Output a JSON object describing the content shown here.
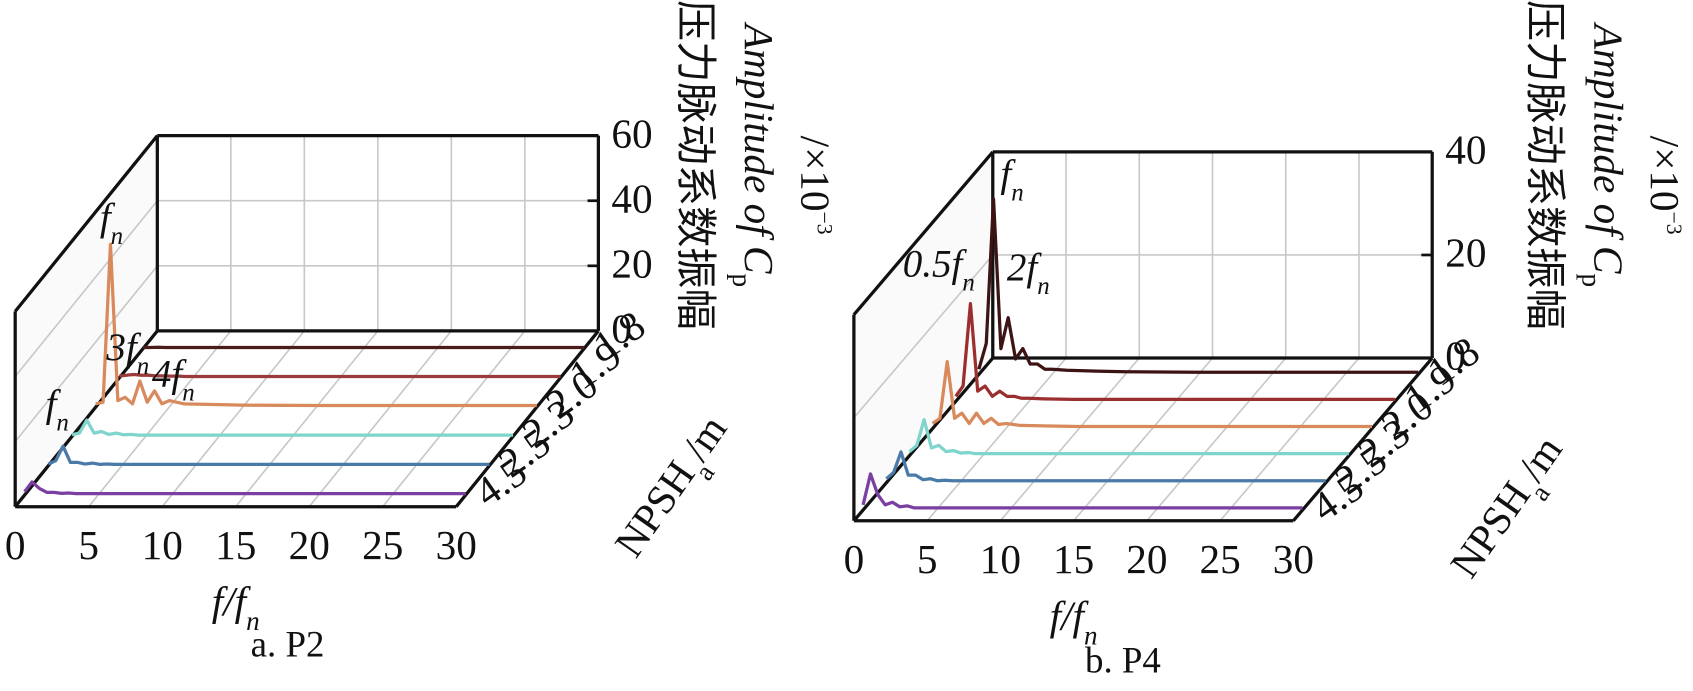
{
  "chart_data": [
    {
      "type": "waterfall",
      "caption": "a. P2",
      "xlabel": {
        "text": "f/f",
        "sub": "n"
      },
      "zlabel": {
        "text": "NPSH",
        "sub": "a",
        "tail": "/m"
      },
      "ylabel": {
        "cn": "压力脉动系数振幅",
        "text": "Amplitude of C",
        "sub": "p",
        "unit": "/×10",
        "sup": "−3"
      },
      "x": [
        0,
        0.5,
        1,
        1.5,
        2,
        2.5,
        3,
        3.5,
        4,
        4.5,
        5,
        6,
        8,
        10,
        15,
        20,
        25,
        30
      ],
      "xlim": [
        0,
        30
      ],
      "xticks": [
        0,
        5,
        10,
        15,
        20,
        25,
        30
      ],
      "ylim": [
        0,
        60
      ],
      "yticks": [
        0,
        20,
        40,
        60
      ],
      "z_categories": [
        "1.8",
        "1.9",
        "2.0",
        "2.3",
        "2.5",
        "4.5"
      ],
      "grid": true,
      "series": [
        {
          "color": "#4a1c1c",
          "values": [
            0.3,
            0.3,
            0.4,
            0.3,
            0.3,
            0.3,
            0.3,
            0.3,
            0.3,
            0.3,
            0.3,
            0.3,
            0.3,
            0.3,
            0.3,
            0.3,
            0.3,
            0.3
          ]
        },
        {
          "color": "#9b3a3a",
          "values": [
            0.5,
            0.8,
            1,
            0.8,
            0.8,
            0.6,
            0.6,
            0.5,
            0.5,
            0.4,
            0.4,
            0.4,
            0.4,
            0.4,
            0.4,
            0.4,
            0.4,
            0.4
          ]
        },
        {
          "color": "#d98a5c",
          "values": [
            1,
            1.5,
            50,
            2,
            3,
            1,
            8,
            1.5,
            5,
            1,
            2,
            1,
            0.8,
            0.6,
            0.5,
            0.5,
            0.5,
            0.5
          ]
        },
        {
          "color": "#7fd4cc",
          "values": [
            0.5,
            1,
            5,
            1,
            1.5,
            0.6,
            1,
            0.5,
            0.6,
            0.4,
            0.4,
            0.4,
            0.4,
            0.4,
            0.4,
            0.4,
            0.4,
            0.4
          ]
        },
        {
          "color": "#4a7aa8",
          "values": [
            0.5,
            1.5,
            6,
            1,
            1,
            0.5,
            0.8,
            0.4,
            0.5,
            0.4,
            0.4,
            0.4,
            0.4,
            0.4,
            0.4,
            0.4,
            0.4,
            0.4
          ]
        },
        {
          "color": "#7a3fa0",
          "values": [
            1,
            4,
            2,
            0.8,
            0.8,
            0.5,
            0.6,
            0.4,
            0.4,
            0.4,
            0.4,
            0.4,
            0.4,
            0.4,
            0.4,
            0.4,
            0.4,
            0.4
          ]
        }
      ],
      "annotations": [
        {
          "text": "f",
          "sub": "n"
        },
        {
          "text": "3f",
          "sub": "n"
        },
        {
          "text": "4f",
          "sub": "n"
        },
        {
          "text": "f",
          "sub": "n"
        }
      ]
    },
    {
      "type": "waterfall",
      "caption": "b. P4",
      "xlabel": {
        "text": "f/f",
        "sub": "n"
      },
      "zlabel": {
        "text": "NPSH",
        "sub": "a",
        "tail": "/m"
      },
      "ylabel": {
        "cn": "压力脉动系数振幅",
        "text": "Amplitude of C",
        "sub": "p",
        "unit": "/×10",
        "sup": "−3"
      },
      "x": [
        0,
        0.5,
        1,
        1.5,
        2,
        2.5,
        3,
        3.5,
        4,
        4.5,
        5,
        6,
        8,
        10,
        15,
        20,
        25,
        30
      ],
      "xlim": [
        0,
        30
      ],
      "xticks": [
        0,
        5,
        10,
        15,
        20,
        25,
        30
      ],
      "ylim": [
        0,
        40
      ],
      "yticks": [
        0,
        20,
        40
      ],
      "z_categories": [
        "1.8",
        "1.9",
        "2.0",
        "2.3",
        "2.5",
        "4.5"
      ],
      "grid": true,
      "series": [
        {
          "color": "#3d1414",
          "values": [
            1,
            6,
            34,
            5,
            11,
            3,
            5,
            2,
            2,
            1,
            1,
            0.8,
            0.6,
            0.5,
            0.4,
            0.4,
            0.4,
            0.4
          ]
        },
        {
          "color": "#9b2f2f",
          "values": [
            1,
            3,
            19,
            2,
            3,
            1,
            2,
            1,
            1,
            0.6,
            0.6,
            0.5,
            0.4,
            0.4,
            0.4,
            0.4,
            0.4,
            0.4
          ]
        },
        {
          "color": "#d98a5c",
          "values": [
            1,
            2,
            13,
            2,
            3,
            1,
            3,
            1,
            2,
            0.8,
            1,
            0.6,
            0.5,
            0.4,
            0.4,
            0.4,
            0.4,
            0.4
          ]
        },
        {
          "color": "#7fd4cc",
          "values": [
            0.8,
            2,
            7,
            1.5,
            2,
            0.8,
            1,
            0.5,
            0.6,
            0.4,
            0.4,
            0.4,
            0.4,
            0.4,
            0.4,
            0.4,
            0.4,
            0.4
          ]
        },
        {
          "color": "#4a7aa8",
          "values": [
            0.8,
            2,
            6,
            1.5,
            1.5,
            0.6,
            0.8,
            0.4,
            0.5,
            0.4,
            0.4,
            0.4,
            0.4,
            0.4,
            0.4,
            0.4,
            0.4,
            0.4
          ]
        },
        {
          "color": "#7a3fa0",
          "values": [
            1,
            7,
            3,
            1,
            1.5,
            0.6,
            0.8,
            0.4,
            0.4,
            0.4,
            0.4,
            0.4,
            0.4,
            0.4,
            0.4,
            0.4,
            0.4,
            0.4
          ]
        }
      ],
      "annotations": [
        {
          "text": "f",
          "sub": "n"
        },
        {
          "text": "0.5f",
          "sub": "n"
        },
        {
          "text": "2f",
          "sub": "n"
        }
      ]
    }
  ]
}
